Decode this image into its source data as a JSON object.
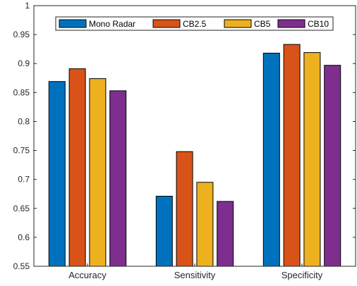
{
  "chart_data": {
    "type": "bar",
    "categories": [
      "Accuracy",
      "Sensitivity",
      "Specificity"
    ],
    "series": [
      {
        "name": "Mono Radar",
        "color": "#0072BD",
        "values": [
          0.869,
          0.671,
          0.918
        ]
      },
      {
        "name": "CB2.5",
        "color": "#D95319",
        "values": [
          0.891,
          0.748,
          0.933
        ]
      },
      {
        "name": "CB5",
        "color": "#EDB120",
        "values": [
          0.874,
          0.695,
          0.919
        ]
      },
      {
        "name": "CB10",
        "color": "#7E2F8E",
        "values": [
          0.853,
          0.662,
          0.897
        ]
      }
    ],
    "ylim": [
      0.55,
      1
    ],
    "yticks": [
      "0.55",
      "0.6",
      "0.65",
      "0.7",
      "0.75",
      "0.8",
      "0.85",
      "0.9",
      "0.95",
      "1"
    ],
    "xlabel": "",
    "ylabel": "",
    "title": "",
    "legend_position": "top-center",
    "grid": false
  }
}
